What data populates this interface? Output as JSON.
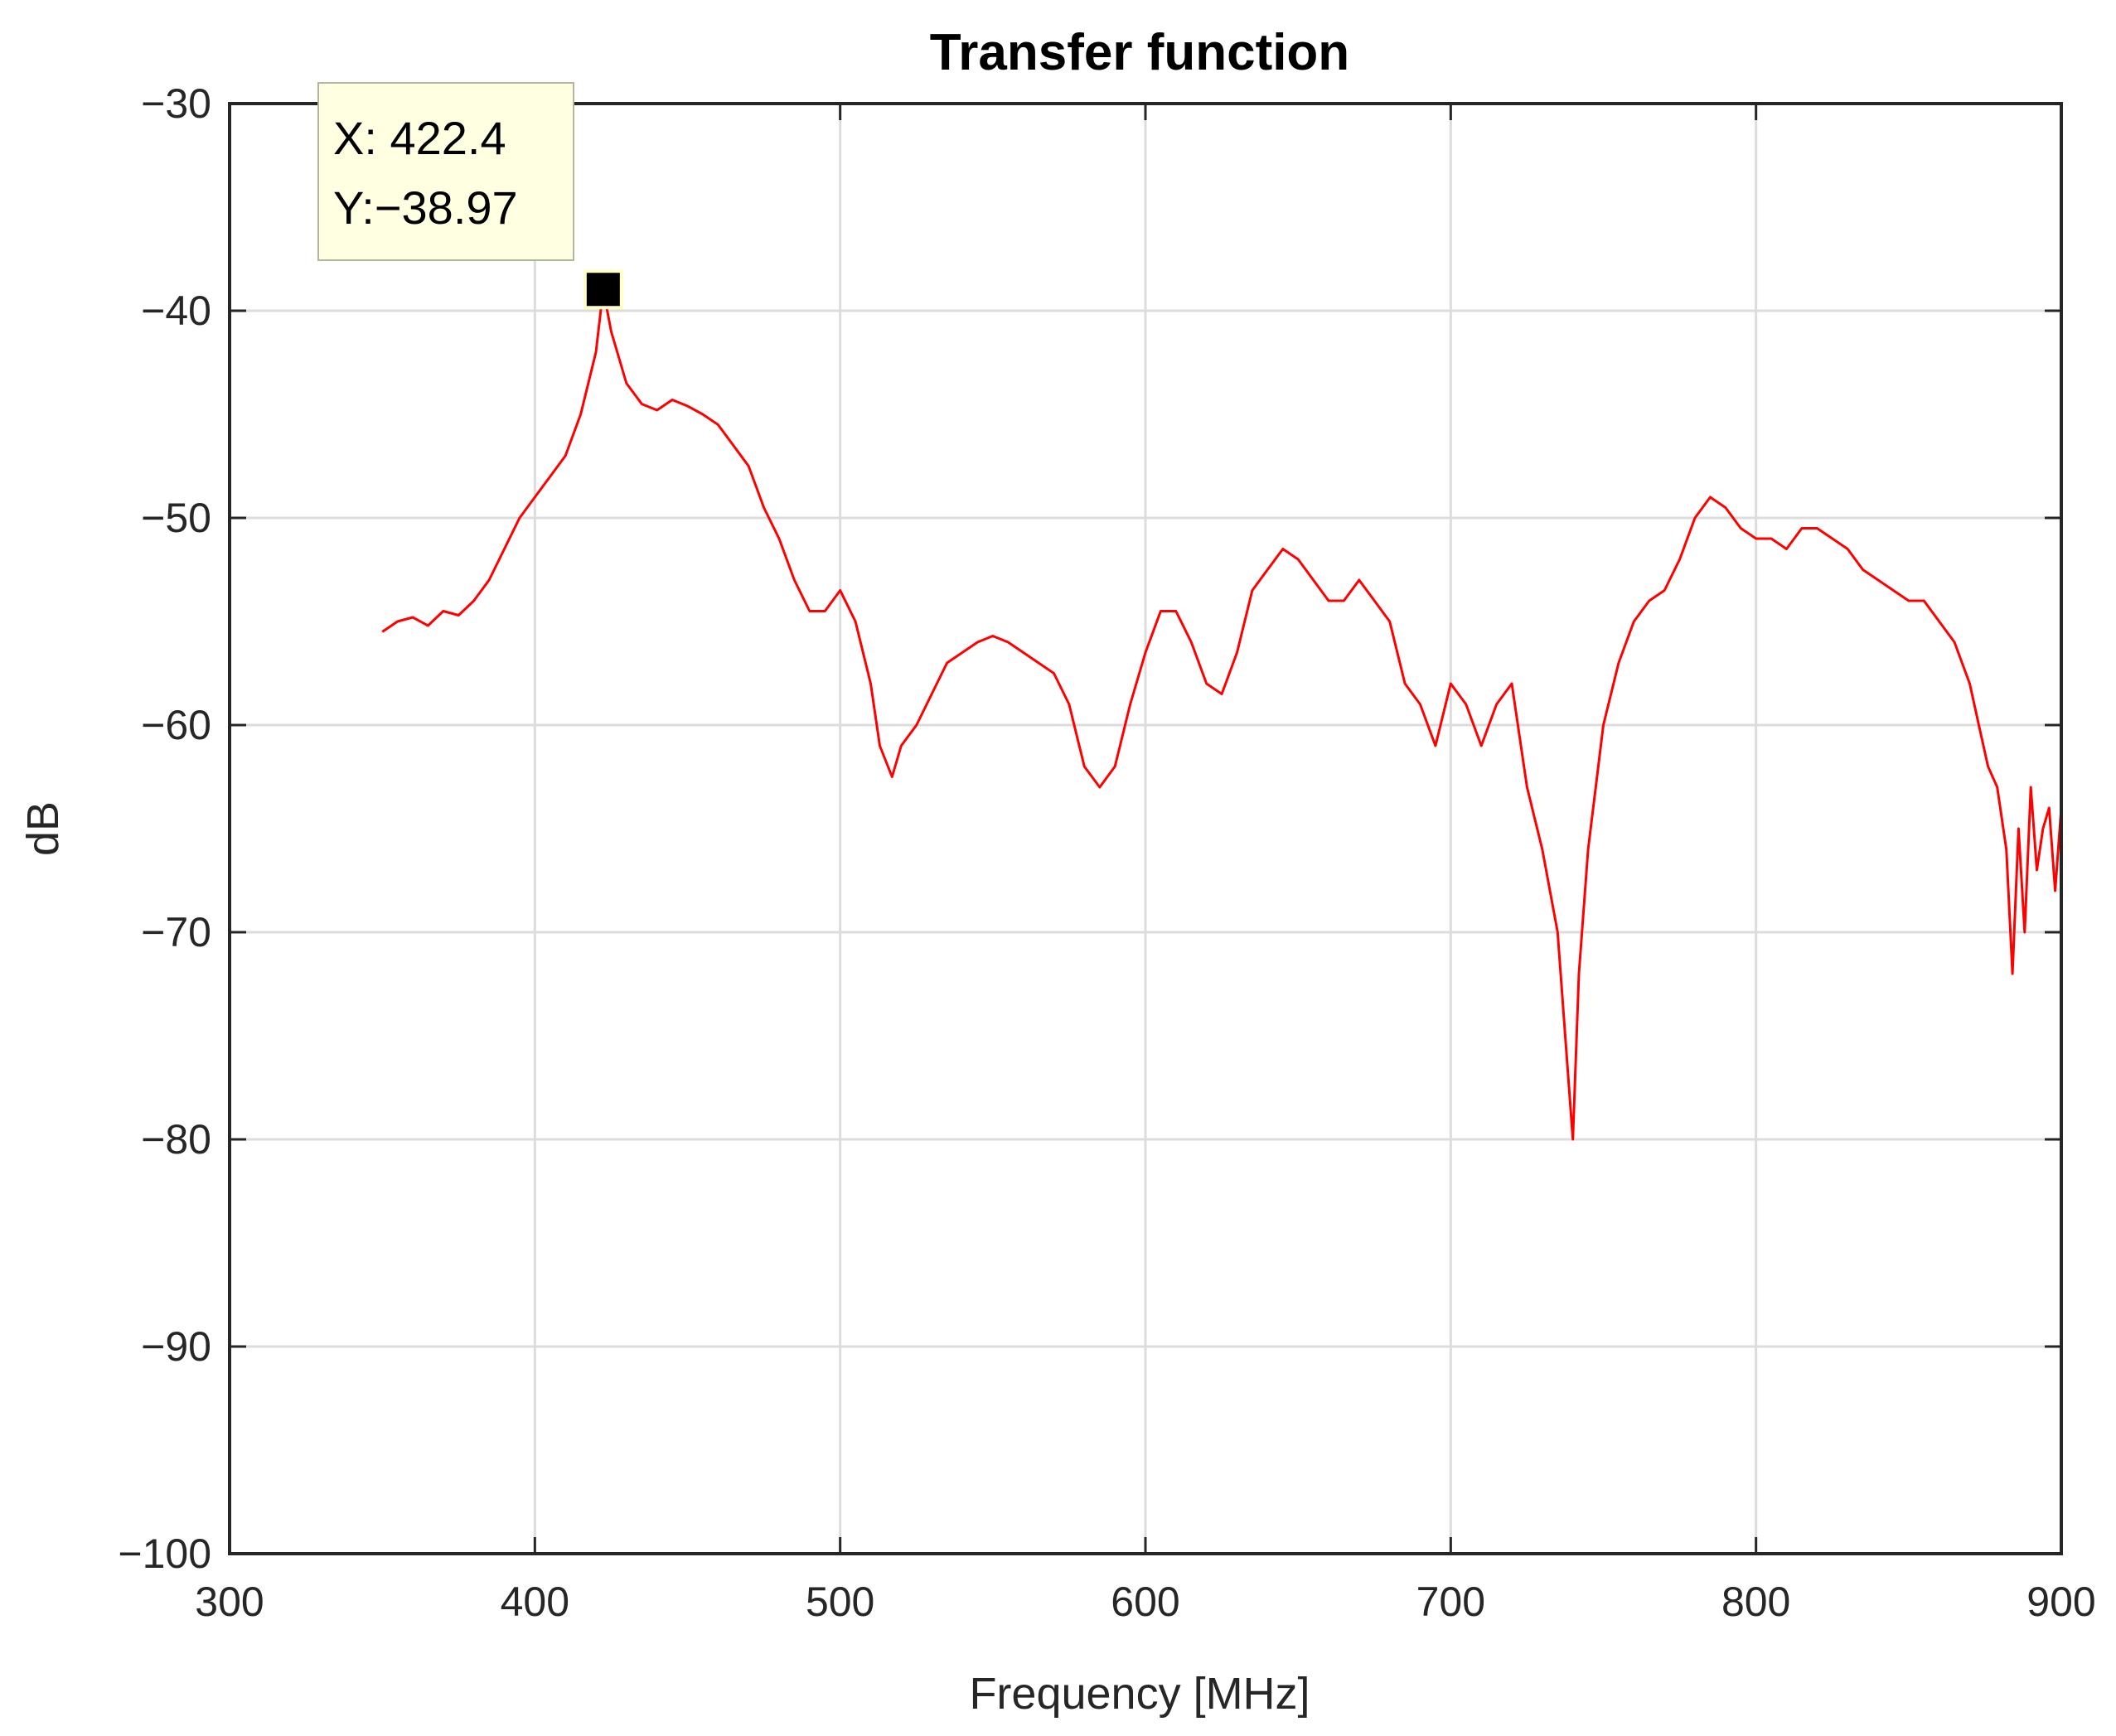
{
  "chart_data": {
    "type": "line",
    "title": "Transfer function",
    "xlabel": "Frequency [MHz]",
    "ylabel": "dB",
    "xlim": [
      300,
      900
    ],
    "ylim": [
      -100,
      -30
    ],
    "xticks": [
      300,
      400,
      500,
      600,
      700,
      800,
      900
    ],
    "yticks": [
      -30,
      -40,
      -50,
      -60,
      -70,
      -80,
      -90,
      -100
    ],
    "xtick_labels": [
      "300",
      "400",
      "500",
      "600",
      "700",
      "800",
      "900"
    ],
    "ytick_labels": [
      "−30",
      "−40",
      "−50",
      "−60",
      "−70",
      "−80",
      "−90",
      "−100"
    ],
    "grid": true,
    "series": [
      {
        "color": "#ff0000",
        "x": [
          350,
          355,
          360,
          365,
          370,
          375,
          380,
          385,
          390,
          395,
          400,
          405,
          410,
          415,
          420,
          422.4,
          425,
          430,
          435,
          440,
          445,
          450,
          455,
          460,
          465,
          470,
          475,
          480,
          485,
          490,
          495,
          500,
          505,
          510,
          513,
          517,
          520,
          525,
          530,
          535,
          540,
          545,
          550,
          555,
          560,
          565,
          570,
          575,
          580,
          585,
          590,
          595,
          600,
          605,
          610,
          615,
          620,
          625,
          630,
          635,
          640,
          645,
          650,
          655,
          660,
          665,
          670,
          675,
          680,
          685,
          690,
          695,
          700,
          705,
          710,
          715,
          720,
          725,
          730,
          735,
          738,
          740,
          742,
          745,
          750,
          755,
          760,
          765,
          770,
          775,
          780,
          785,
          790,
          795,
          800,
          805,
          810,
          815,
          820,
          825,
          830,
          835,
          840,
          845,
          850,
          855,
          860,
          865,
          870,
          873,
          876,
          879,
          882,
          884,
          886,
          888,
          890,
          892,
          894,
          896,
          898,
          900
        ],
        "y": [
          -55.5,
          -55,
          -54.8,
          -55.2,
          -54.5,
          -54.7,
          -54,
          -53,
          -51.5,
          -50,
          -49,
          -48,
          -47,
          -45,
          -42,
          -38.97,
          -41,
          -43.5,
          -44.5,
          -44.8,
          -44.3,
          -44.6,
          -45,
          -45.5,
          -46.5,
          -47.5,
          -49.5,
          -51,
          -53,
          -54.5,
          -54.5,
          -53.5,
          -55,
          -58,
          -61,
          -62.5,
          -61,
          -60,
          -58.5,
          -57,
          -56.5,
          -56,
          -55.7,
          -56,
          -56.5,
          -57,
          -57.5,
          -59,
          -62,
          -63,
          -62,
          -59,
          -56.5,
          -54.5,
          -54.5,
          -56,
          -58,
          -58.5,
          -56.5,
          -53.5,
          -52.5,
          -51.5,
          -52,
          -53,
          -54,
          -54,
          -53,
          -54,
          -55,
          -58,
          -59,
          -61,
          -58,
          -59,
          -61,
          -59,
          -58,
          -63,
          -66,
          -70,
          -76,
          -80,
          -72,
          -66,
          -60,
          -57,
          -55,
          -54,
          -53.5,
          -52,
          -50,
          -49,
          -49.5,
          -50.5,
          -51,
          -51,
          -51.5,
          -50.5,
          -50.5,
          -51,
          -51.5,
          -52.5,
          -53,
          -53.5,
          -54,
          -54,
          -55,
          -56,
          -58,
          -60,
          -62,
          -63,
          -66,
          -72,
          -65,
          -70,
          -63,
          -67,
          -65,
          -64,
          -68,
          -64
        ]
      }
    ],
    "datatip": {
      "x_label": "X: 422.4",
      "y_label": "Y:−38.97",
      "x": 422.4,
      "y": -38.97
    }
  }
}
